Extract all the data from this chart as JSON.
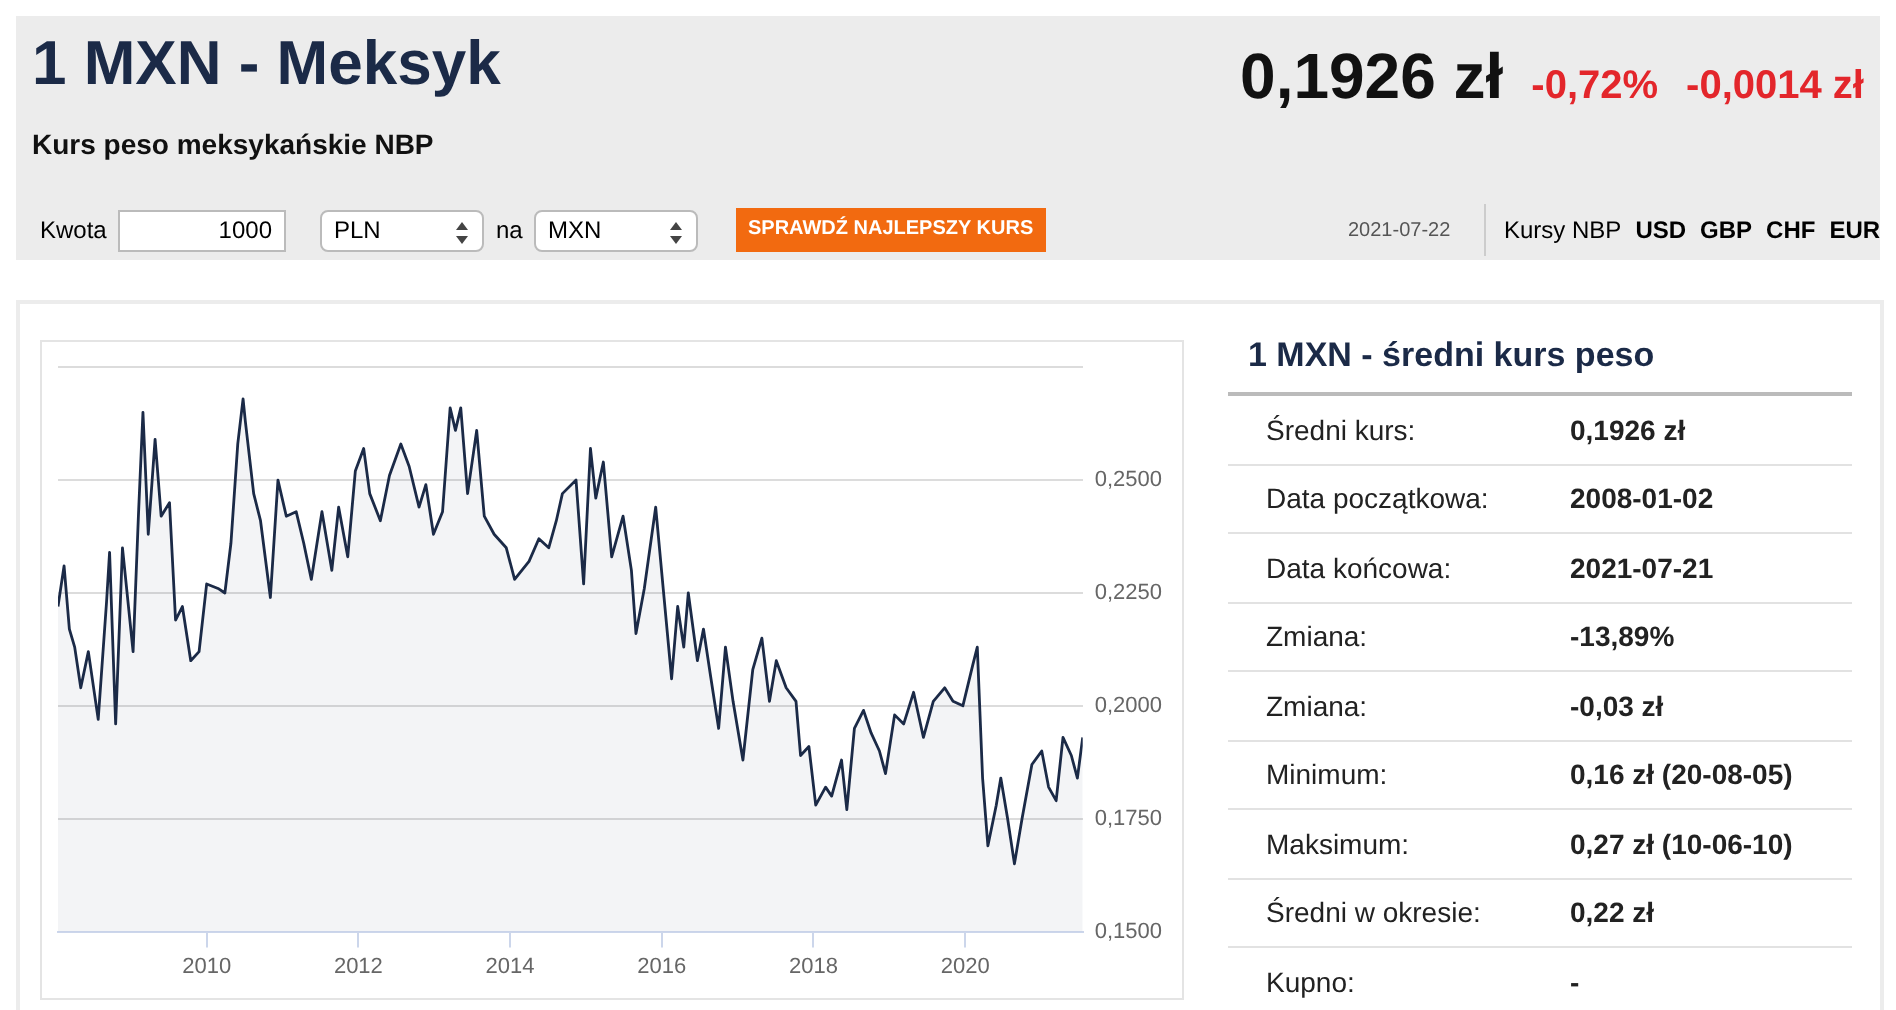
{
  "chart_data": [
    {
      "type": "other",
      "title": "1 MXN - Meksyk",
      "subtitle": "Kurs peso meksykańskie NBP",
      "annotations": [
        "0,1926 zł",
        "-0,72%",
        "-0,0014 zł",
        "Kwota",
        "1000",
        "PLN",
        "na",
        "MXN",
        "SPRAWDŹ NAJLEPSZY KURS",
        "2021-07-22",
        "Kursy NBP",
        "USD",
        "GBP",
        "CHF",
        "EUR"
      ]
    },
    {
      "type": "area",
      "color": "#1b2a47",
      "grid": "y",
      "xlim": [
        2008.04,
        2021.55
      ],
      "xticks": [
        2010,
        2012,
        2014,
        2016,
        2018,
        2020
      ],
      "ylim": [
        0.15,
        0.275
      ],
      "yticks": [
        {
          "value": 0.15,
          "label": "0,1500"
        },
        {
          "value": 0.175,
          "label": "0,1750"
        },
        {
          "value": 0.2,
          "label": "0,2000"
        },
        {
          "value": 0.225,
          "label": "0,2250"
        },
        {
          "value": 0.25,
          "label": "0,2500"
        },
        {
          "value": 0.275,
          "label": null
        }
      ],
      "x": [
        2008.04,
        2008.12,
        2008.19,
        2008.26,
        2008.34,
        2008.44,
        2008.57,
        2008.68,
        2008.72,
        2008.8,
        2008.89,
        2009.03,
        2009.1,
        2009.16,
        2009.23,
        2009.32,
        2009.4,
        2009.51,
        2009.59,
        2009.68,
        2009.79,
        2009.9,
        2010.0,
        2010.15,
        2010.24,
        2010.32,
        2010.41,
        2010.48,
        2010.51,
        2010.62,
        2010.71,
        2010.84,
        2010.94,
        2011.05,
        2011.18,
        2011.28,
        2011.38,
        2011.52,
        2011.65,
        2011.74,
        2011.86,
        2011.96,
        2012.07,
        2012.15,
        2012.29,
        2012.41,
        2012.56,
        2012.67,
        2012.8,
        2012.89,
        2012.99,
        2013.11,
        2013.21,
        2013.28,
        2013.35,
        2013.44,
        2013.56,
        2013.66,
        2013.79,
        2013.95,
        2014.06,
        2014.25,
        2014.38,
        2014.51,
        2014.61,
        2014.69,
        2014.87,
        2014.97,
        2015.06,
        2015.13,
        2015.23,
        2015.34,
        2015.49,
        2015.6,
        2015.66,
        2015.77,
        2015.92,
        2016.03,
        2016.13,
        2016.21,
        2016.29,
        2016.35,
        2016.47,
        2016.55,
        2016.64,
        2016.75,
        2016.84,
        2016.94,
        2017.07,
        2017.2,
        2017.32,
        2017.42,
        2017.51,
        2017.64,
        2017.77,
        2017.83,
        2017.94,
        2018.03,
        2018.16,
        2018.24,
        2018.37,
        2018.44,
        2018.54,
        2018.66,
        2018.76,
        2018.87,
        2018.95,
        2019.07,
        2019.19,
        2019.32,
        2019.45,
        2019.58,
        2019.73,
        2019.84,
        2019.97,
        2020.1,
        2020.16,
        2020.23,
        2020.3,
        2020.41,
        2020.47,
        2020.56,
        2020.65,
        2020.75,
        2020.88,
        2021.01,
        2021.1,
        2021.2,
        2021.29,
        2021.4,
        2021.48,
        2021.55
      ],
      "values": [
        0.222,
        0.231,
        0.217,
        0.213,
        0.204,
        0.212,
        0.197,
        0.223,
        0.234,
        0.196,
        0.235,
        0.212,
        0.242,
        0.265,
        0.238,
        0.259,
        0.242,
        0.245,
        0.219,
        0.222,
        0.21,
        0.212,
        0.227,
        0.226,
        0.225,
        0.236,
        0.258,
        0.268,
        0.263,
        0.247,
        0.241,
        0.224,
        0.25,
        0.242,
        0.243,
        0.236,
        0.228,
        0.243,
        0.23,
        0.244,
        0.233,
        0.252,
        0.257,
        0.247,
        0.241,
        0.251,
        0.258,
        0.253,
        0.244,
        0.249,
        0.238,
        0.243,
        0.266,
        0.261,
        0.266,
        0.247,
        0.261,
        0.242,
        0.238,
        0.235,
        0.228,
        0.232,
        0.237,
        0.235,
        0.241,
        0.247,
        0.25,
        0.227,
        0.257,
        0.246,
        0.254,
        0.233,
        0.242,
        0.23,
        0.216,
        0.226,
        0.244,
        0.224,
        0.206,
        0.222,
        0.213,
        0.225,
        0.21,
        0.217,
        0.207,
        0.195,
        0.213,
        0.201,
        0.188,
        0.208,
        0.215,
        0.201,
        0.21,
        0.204,
        0.201,
        0.189,
        0.191,
        0.178,
        0.182,
        0.18,
        0.188,
        0.177,
        0.195,
        0.199,
        0.194,
        0.19,
        0.185,
        0.198,
        0.196,
        0.203,
        0.193,
        0.201,
        0.204,
        0.201,
        0.2,
        0.209,
        0.213,
        0.184,
        0.169,
        0.178,
        0.184,
        0.175,
        0.165,
        0.175,
        0.187,
        0.19,
        0.182,
        0.179,
        0.193,
        0.189,
        0.184,
        0.193
      ]
    },
    {
      "type": "other",
      "title": "1 MXN - średni kurs peso",
      "annotations": [
        "Średni kurs:",
        "0,1926 zł",
        "Data początkowa:",
        "2008-01-02",
        "Data końcowa:",
        "2021-07-21",
        "Zmiana:",
        "-13,89%",
        "Zmiana:",
        "-0,03 zł",
        "Minimum:",
        "0,16 zł (20-08-05)",
        "Maksimum:",
        "0,27 zł (10-06-10)",
        "Średni w okresie:",
        "0,22 zł",
        "Kupno:",
        "-"
      ]
    }
  ]
}
